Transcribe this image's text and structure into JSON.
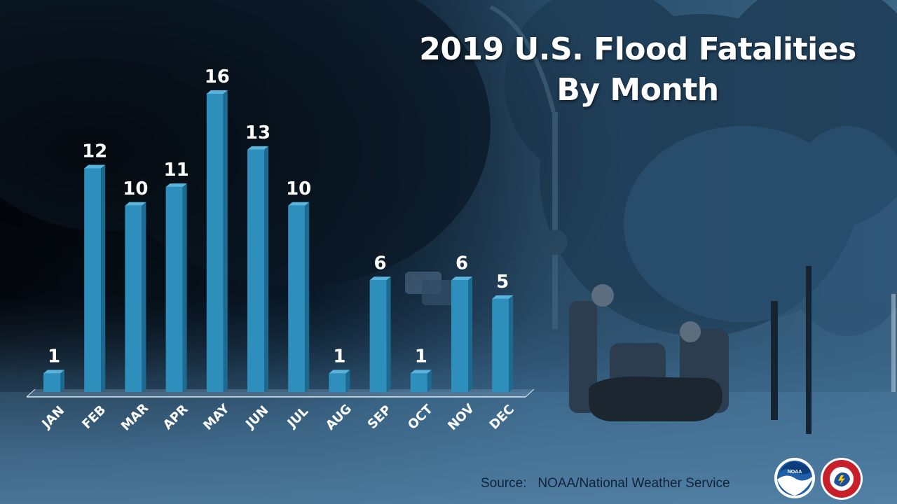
{
  "chart_data": {
    "type": "bar",
    "title": "2019 U.S. Flood Fatalities",
    "subtitle": "By Month",
    "categories": [
      "JAN",
      "FEB",
      "MAR",
      "APR",
      "MAY",
      "JUN",
      "JUL",
      "AUG",
      "SEP",
      "OCT",
      "NOV",
      "DEC"
    ],
    "values": [
      1,
      12,
      10,
      11,
      16,
      13,
      10,
      1,
      6,
      1,
      6,
      5
    ],
    "ylim": [
      0,
      16
    ],
    "grid": false,
    "data_labels": true,
    "bar_color": "#2e8fbd"
  },
  "footer": {
    "source_label": "Source:",
    "source_text": "NOAA/National Weather Service"
  },
  "logos": {
    "noaa": {
      "icon": "noaa-logo",
      "text": "NOAA"
    },
    "nws": {
      "icon": "nws-logo",
      "text": "NATIONAL WEATHER SERVICE"
    }
  }
}
